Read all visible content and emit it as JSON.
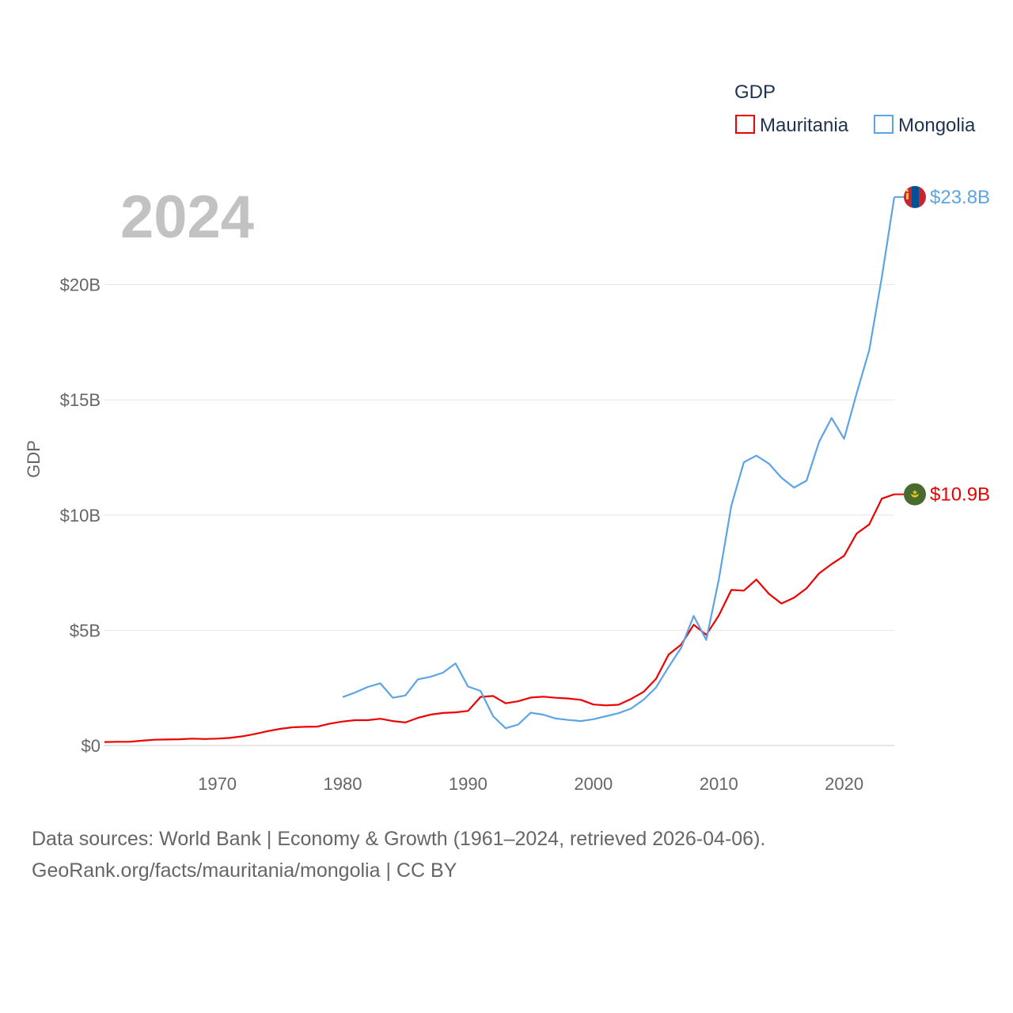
{
  "chart_data": {
    "type": "line",
    "year_label": "2024",
    "ylabel": "GDP",
    "legend": {
      "title": "GDP",
      "position": "top-right"
    },
    "xlim": [
      1961,
      2024
    ],
    "ylim": [
      0,
      25000000000
    ],
    "x_ticks": [
      1970,
      1980,
      1990,
      2000,
      2010,
      2020
    ],
    "x_tick_labels": [
      "1970",
      "1980",
      "1990",
      "2000",
      "2010",
      "2020"
    ],
    "y_ticks": [
      0,
      5000000000,
      10000000000,
      15000000000,
      20000000000
    ],
    "y_tick_labels": [
      "$0",
      "$5B",
      "$10B",
      "$15B",
      "$20B"
    ],
    "series": [
      {
        "name": "Mauritania",
        "color": "#ee0000",
        "end_label": "$10.9B",
        "flag": "mauritania-flag",
        "years": [
          1961,
          1962,
          1963,
          1964,
          1965,
          1966,
          1967,
          1968,
          1969,
          1970,
          1971,
          1972,
          1973,
          1974,
          1975,
          1976,
          1977,
          1978,
          1979,
          1980,
          1981,
          1982,
          1983,
          1984,
          1985,
          1986,
          1987,
          1988,
          1989,
          1990,
          1991,
          1992,
          1993,
          1994,
          1995,
          1996,
          1997,
          1998,
          1999,
          2000,
          2001,
          2002,
          2003,
          2004,
          2005,
          2006,
          2007,
          2008,
          2009,
          2010,
          2011,
          2012,
          2013,
          2014,
          2015,
          2016,
          2017,
          2018,
          2019,
          2020,
          2021,
          2022,
          2023,
          2024
        ],
        "values": [
          0.15,
          0.16,
          0.16,
          0.21,
          0.25,
          0.26,
          0.27,
          0.3,
          0.28,
          0.3,
          0.33,
          0.4,
          0.5,
          0.62,
          0.72,
          0.79,
          0.81,
          0.82,
          0.95,
          1.04,
          1.1,
          1.1,
          1.16,
          1.06,
          1.0,
          1.2,
          1.34,
          1.41,
          1.44,
          1.5,
          2.11,
          2.15,
          1.83,
          1.92,
          2.08,
          2.12,
          2.07,
          2.04,
          1.98,
          1.78,
          1.74,
          1.77,
          2.02,
          2.33,
          2.9,
          3.95,
          4.38,
          5.24,
          4.8,
          5.64,
          6.75,
          6.72,
          7.2,
          6.58,
          6.16,
          6.41,
          6.82,
          7.47,
          7.87,
          8.23,
          9.2,
          9.59,
          10.71,
          10.9
        ]
      },
      {
        "name": "Mongolia",
        "color": "#5ca4e6",
        "end_label": "$23.8B",
        "flag": "mongolia-flag",
        "years": [
          1980,
          1981,
          1982,
          1983,
          1984,
          1985,
          1986,
          1987,
          1988,
          1989,
          1990,
          1991,
          1992,
          1993,
          1994,
          1995,
          1996,
          1997,
          1998,
          1999,
          2000,
          2001,
          2002,
          2003,
          2004,
          2005,
          2006,
          2007,
          2008,
          2009,
          2010,
          2011,
          2012,
          2013,
          2014,
          2015,
          2016,
          2017,
          2018,
          2019,
          2020,
          2021,
          2022,
          2023,
          2024
        ],
        "values": [
          2.1,
          2.3,
          2.54,
          2.7,
          2.07,
          2.17,
          2.87,
          2.98,
          3.16,
          3.56,
          2.56,
          2.37,
          1.27,
          0.75,
          0.91,
          1.42,
          1.34,
          1.17,
          1.11,
          1.06,
          1.14,
          1.27,
          1.4,
          1.6,
          1.99,
          2.52,
          3.41,
          4.24,
          5.62,
          4.58,
          7.19,
          10.41,
          12.29,
          12.58,
          12.23,
          11.62,
          11.19,
          11.49,
          13.18,
          14.21,
          13.31,
          15.29,
          17.15,
          20.31,
          23.8
        ]
      }
    ]
  },
  "footer": {
    "line1": "Data sources: World Bank | Economy & Growth (1961–2024, retrieved 2026-04-06).",
    "line2": "GeoRank.org/facts/mauritania/mongolia | CC BY"
  }
}
